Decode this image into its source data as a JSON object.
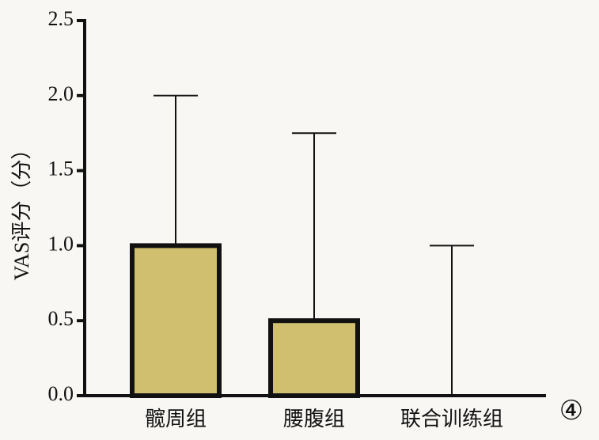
{
  "chart_data": {
    "type": "bar",
    "y_label": "VAS评分（分）",
    "annotation": "④",
    "categories": [
      "髋周组",
      "腰腹组",
      "联合训练组"
    ],
    "values": [
      1.0,
      0.5,
      0
    ],
    "errors": [
      1.0,
      1.25,
      1.0
    ],
    "color": "#cfbf6e",
    "ylim": [
      0,
      2.5
    ],
    "yticks": [
      {
        "value": 0,
        "label": "0.0"
      },
      0.5,
      {
        "value": 1,
        "label": "1.0"
      },
      1.5,
      {
        "value": 2,
        "label": "2.0"
      },
      2.5
    ]
  }
}
